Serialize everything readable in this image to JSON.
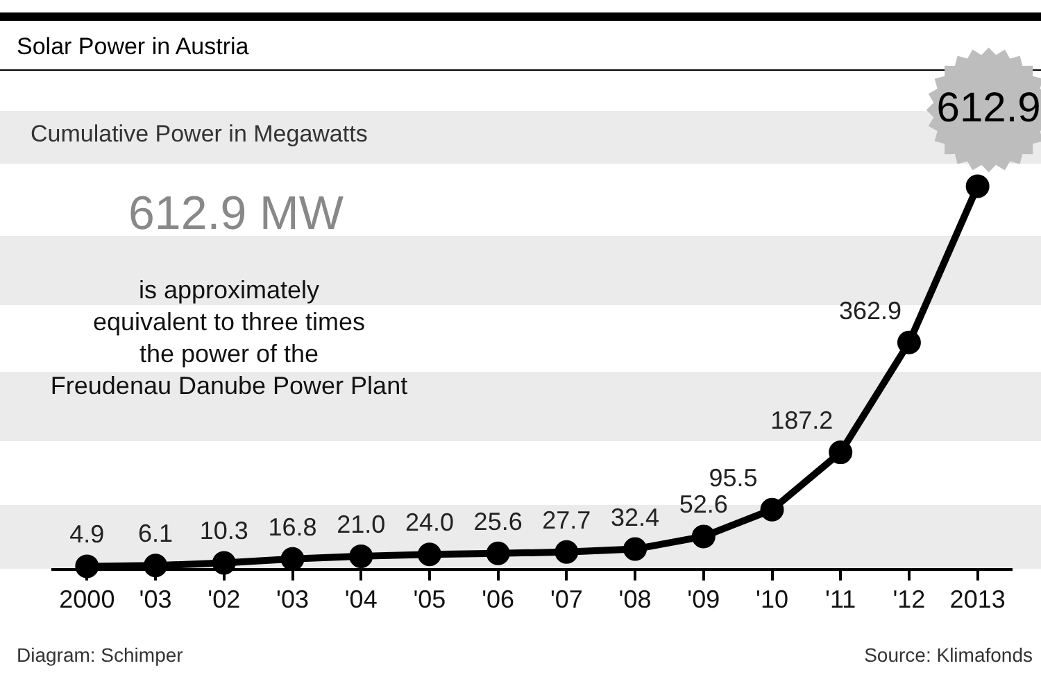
{
  "chart_data": {
    "type": "line",
    "title": "Solar Power in Austria",
    "subtitle": "Cumulative Power in Megawatts",
    "categories": [
      "2000",
      "'03",
      "'02",
      "'03",
      "'04",
      "'05",
      "'06",
      "'07",
      "'08",
      "'09",
      "'10",
      "'11",
      "'12",
      "2013"
    ],
    "series": [
      {
        "color": "#000000",
        "values": [
          4.9,
          6.1,
          10.3,
          16.8,
          21.0,
          24.0,
          25.6,
          27.7,
          32.4,
          52.6,
          95.5,
          187.2,
          362.9,
          612.9
        ],
        "value_labels": [
          "4.9",
          "6.1",
          "10.3",
          "16.8",
          "21.0",
          "24.0",
          "25.6",
          "27.7",
          "32.4",
          "52.6",
          "95.5",
          "187.2",
          "362.9",
          "612.9"
        ]
      }
    ],
    "tick_labels": "x",
    "marker": "circle",
    "line_style": "solid",
    "grid": false,
    "legend": false,
    "annotations": [
      "612.9 MW",
      "is approximately\nequivalent to three times\nthe power of the\nFreudenau Danube Power Plant",
      "Diagram: Schimper",
      "Source: Klimafonds"
    ]
  }
}
